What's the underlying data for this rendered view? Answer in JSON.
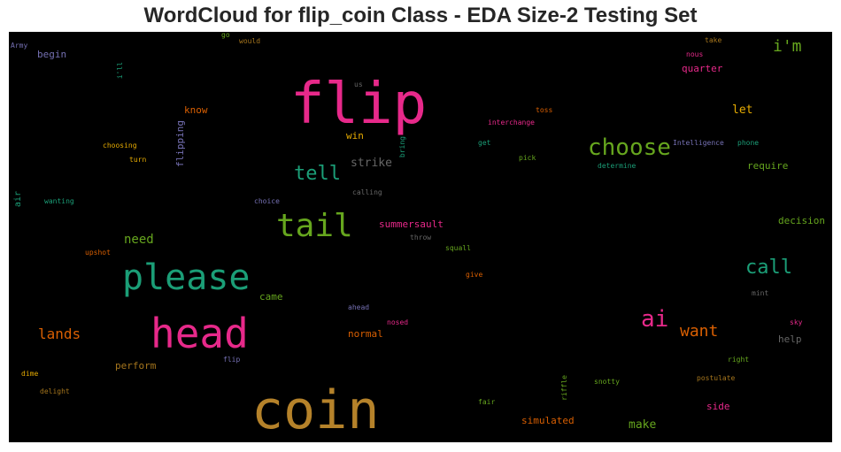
{
  "chart_data": {
    "type": "wordcloud",
    "title": "WordCloud for flip_coin Class - EDA Size-2 Testing Set",
    "background": "#000000",
    "words": [
      {
        "text": "coin",
        "color": "#b5822a"
      },
      {
        "text": "flip",
        "color": "#e7298a"
      },
      {
        "text": "head",
        "color": "#e7298a"
      },
      {
        "text": "please",
        "color": "#1b9e77"
      },
      {
        "text": "tail",
        "color": "#66a61e"
      },
      {
        "text": "choose",
        "color": "#66a61e"
      },
      {
        "text": "ai",
        "color": "#e7298a"
      },
      {
        "text": "call",
        "color": "#1b9e77"
      },
      {
        "text": "tell",
        "color": "#1b9e77"
      },
      {
        "text": "want",
        "color": "#d95f02"
      },
      {
        "text": "i'm",
        "color": "#66a61e"
      },
      {
        "text": "lands",
        "color": "#d95f02"
      },
      {
        "text": "need",
        "color": "#66a61e"
      },
      {
        "text": "strike",
        "color": "#666666"
      },
      {
        "text": "make",
        "color": "#66a61e"
      },
      {
        "text": "let",
        "color": "#e6ab02"
      },
      {
        "text": "side",
        "color": "#e7298a"
      },
      {
        "text": "simulated",
        "color": "#d95f02"
      },
      {
        "text": "decision",
        "color": "#66a61e"
      },
      {
        "text": "require",
        "color": "#66a61e"
      },
      {
        "text": "help",
        "color": "#666666"
      },
      {
        "text": "summersault",
        "color": "#e7298a"
      },
      {
        "text": "normal",
        "color": "#d95f02"
      },
      {
        "text": "quarter",
        "color": "#e7298a"
      },
      {
        "text": "know",
        "color": "#d95f02"
      },
      {
        "text": "begin",
        "color": "#7570b3"
      },
      {
        "text": "perform",
        "color": "#a6761d"
      },
      {
        "text": "came",
        "color": "#66a61e"
      },
      {
        "text": "win",
        "color": "#e6ab02"
      },
      {
        "text": "flipping",
        "color": "#7570b3"
      },
      {
        "text": "air",
        "color": "#1b9e77"
      },
      {
        "text": "Army",
        "color": "#7570b3"
      },
      {
        "text": "go",
        "color": "#66a61e"
      },
      {
        "text": "would",
        "color": "#a6761d"
      },
      {
        "text": "take",
        "color": "#a6761d"
      },
      {
        "text": "nous",
        "color": "#e7298a"
      },
      {
        "text": "i'll",
        "color": "#1b9e77"
      },
      {
        "text": "us",
        "color": "#666666"
      },
      {
        "text": "toss",
        "color": "#d95f02"
      },
      {
        "text": "interchange",
        "color": "#e7298a"
      },
      {
        "text": "get",
        "color": "#1b9e77"
      },
      {
        "text": "bring",
        "color": "#1b9e77"
      },
      {
        "text": "pick",
        "color": "#66a61e"
      },
      {
        "text": "Intelligence",
        "color": "#7570b3"
      },
      {
        "text": "phone",
        "color": "#1b9e77"
      },
      {
        "text": "determine",
        "color": "#1b9e77"
      },
      {
        "text": "choosing",
        "color": "#e6ab02"
      },
      {
        "text": "turn",
        "color": "#e6ab02"
      },
      {
        "text": "calling",
        "color": "#666666"
      },
      {
        "text": "wanting",
        "color": "#1b9e77"
      },
      {
        "text": "choice",
        "color": "#7570b3"
      },
      {
        "text": "throw",
        "color": "#666666"
      },
      {
        "text": "squall",
        "color": "#66a61e"
      },
      {
        "text": "upshot",
        "color": "#d95f02"
      },
      {
        "text": "give",
        "color": "#d95f02"
      },
      {
        "text": "mint",
        "color": "#666666"
      },
      {
        "text": "ahead",
        "color": "#7570b3"
      },
      {
        "text": "nosed",
        "color": "#e7298a"
      },
      {
        "text": "sky",
        "color": "#e7298a"
      },
      {
        "text": "flip",
        "color": "#7570b3"
      },
      {
        "text": "right",
        "color": "#66a61e"
      },
      {
        "text": "dime",
        "color": "#e6ab02"
      },
      {
        "text": "postulate",
        "color": "#a6761d"
      },
      {
        "text": "snotty",
        "color": "#66a61e"
      },
      {
        "text": "riffle",
        "color": "#66a61e"
      },
      {
        "text": "delight",
        "color": "#a6761d"
      },
      {
        "text": "fair",
        "color": "#66a61e"
      }
    ]
  }
}
